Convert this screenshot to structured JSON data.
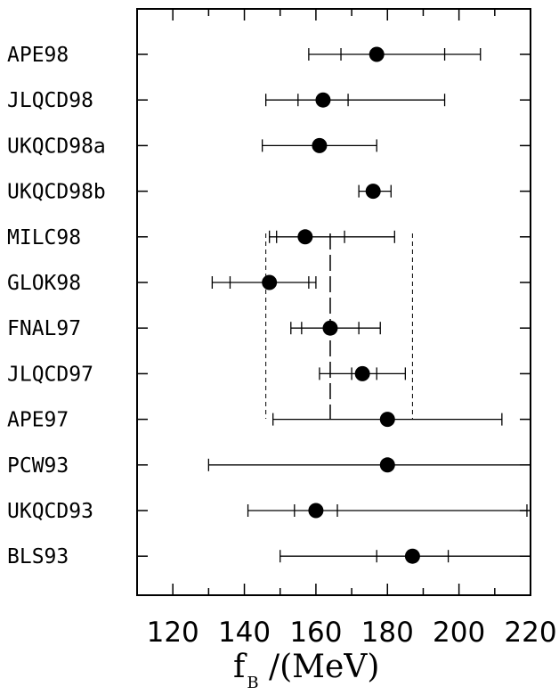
{
  "chart_data": {
    "type": "scatter",
    "subtype": "horizontal-errorbar",
    "xlabel_main": "f",
    "xlabel_sub": "B",
    "xlabel_unit": " /(MeV)",
    "xlim": [
      110,
      220
    ],
    "xticks": [
      120,
      140,
      160,
      180,
      200,
      220
    ],
    "grid": false,
    "legend": "none",
    "average": {
      "center": 164,
      "low": 146,
      "high": 187
    },
    "entries": [
      {
        "label": "APE98",
        "value": 177,
        "inner": [
          167,
          196
        ],
        "outer": [
          158,
          206
        ]
      },
      {
        "label": "JLQCD98",
        "value": 162,
        "inner": [
          155,
          169
        ],
        "outer": [
          146,
          196
        ]
      },
      {
        "label": "UKQCD98a",
        "value": 161,
        "inner": [
          145,
          177
        ],
        "outer": [
          145,
          177
        ]
      },
      {
        "label": "UKQCD98b",
        "value": 176,
        "inner": [
          172,
          181
        ],
        "outer": [
          172,
          181
        ]
      },
      {
        "label": "MILC98",
        "value": 157,
        "inner": [
          149,
          168
        ],
        "outer": [
          147,
          182
        ]
      },
      {
        "label": "GLOK98",
        "value": 147,
        "inner": [
          136,
          158
        ],
        "outer": [
          131,
          160
        ]
      },
      {
        "label": "FNAL97",
        "value": 164,
        "inner": [
          156,
          172
        ],
        "outer": [
          153,
          178
        ]
      },
      {
        "label": "JLQCD97",
        "value": 173,
        "inner": [
          170,
          177
        ],
        "outer": [
          161,
          185
        ]
      },
      {
        "label": "APE97",
        "value": 180,
        "inner": [
          148,
          212
        ],
        "outer": [
          148,
          212
        ]
      },
      {
        "label": "PCW93",
        "value": 180,
        "inner": [
          130,
          220
        ],
        "outer": [
          130,
          220
        ]
      },
      {
        "label": "UKQCD93",
        "value": 160,
        "inner": [
          154,
          166
        ],
        "outer": [
          141,
          219
        ]
      },
      {
        "label": "BLS93",
        "value": 187,
        "inner": [
          177,
          197
        ],
        "outer": [
          150,
          220
        ]
      }
    ]
  }
}
